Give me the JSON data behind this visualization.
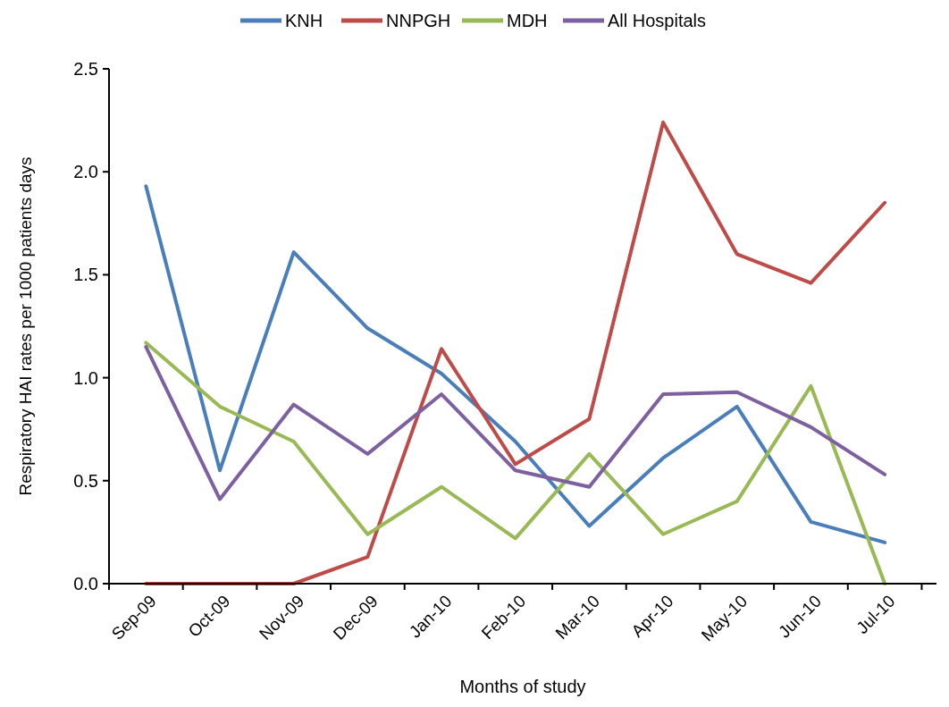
{
  "chart_data": {
    "type": "line",
    "xlabel": "Months of study",
    "ylabel": "Respiratory HAI rates per 1000 patients days",
    "categories": [
      "Sep-09",
      "Oct-09",
      "Nov-09",
      "Dec-09",
      "Jan-10",
      "Feb-10",
      "Mar-10",
      "Apr-10",
      "May-10",
      "Jun-10",
      "Jul-10"
    ],
    "series": [
      {
        "name": "KNH",
        "color": "#4a7ebb",
        "values": [
          1.93,
          0.55,
          1.61,
          1.24,
          1.02,
          0.69,
          0.28,
          0.61,
          0.86,
          0.3,
          0.2
        ]
      },
      {
        "name": "NNPGH",
        "color": "#be4b48",
        "values": [
          0,
          0,
          0,
          0.13,
          1.14,
          0.58,
          0.8,
          2.24,
          1.6,
          1.46,
          1.85
        ]
      },
      {
        "name": "MDH",
        "color": "#98b954",
        "values": [
          1.17,
          0.86,
          0.69,
          0.24,
          0.47,
          0.22,
          0.63,
          0.24,
          0.4,
          0.96,
          0
        ]
      },
      {
        "name": "All Hospitals",
        "color": "#7d60a0",
        "values": [
          1.15,
          0.41,
          0.87,
          0.63,
          0.92,
          0.55,
          0.47,
          0.92,
          0.93,
          0.76,
          0.53
        ]
      }
    ],
    "ylim": [
      0,
      2.5
    ],
    "yticks": [
      {
        "value": 0,
        "label": "0.0"
      },
      {
        "value": 0.5,
        "label": "0.5"
      },
      {
        "value": 1,
        "label": "1.0"
      },
      {
        "value": 1.5,
        "label": "1.5"
      },
      {
        "value": 2,
        "label": "2.0"
      },
      {
        "value": 2.5,
        "label": "2.5"
      }
    ],
    "grid": false,
    "legend": "top",
    "marker": "none",
    "line_style": "solid"
  }
}
